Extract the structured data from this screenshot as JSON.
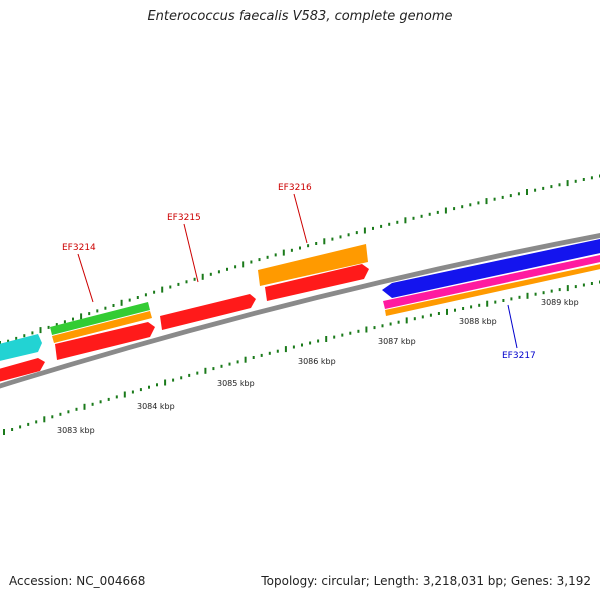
{
  "title": "Enterococcus faecalis V583, complete genome",
  "footer": {
    "accession": "Accession: NC_004668",
    "summary": "Topology: circular; Length: 3,218,031 bp; Genes: 3,192"
  },
  "scale": {
    "unit": "kbp",
    "labels": [
      "3083 kbp",
      "3084 kbp",
      "3085 kbp",
      "3086 kbp",
      "3087 kbp",
      "3088 kbp",
      "3089 kbp"
    ]
  },
  "gene_labels": [
    {
      "id": "EF3214",
      "color": "#cc0000"
    },
    {
      "id": "EF3215",
      "color": "#cc0000"
    },
    {
      "id": "EF3216",
      "color": "#cc0000"
    },
    {
      "id": "EF3217",
      "color": "#0000cc"
    }
  ],
  "colors": {
    "backbone": "#8a8a8a",
    "tick": "#1a7a1a",
    "red": "#ff1a1a",
    "orange": "#ff9a00",
    "green": "#33cc33",
    "cyan": "#22d3d3",
    "blue": "#1414ee",
    "magenta": "#ff1aa0"
  }
}
